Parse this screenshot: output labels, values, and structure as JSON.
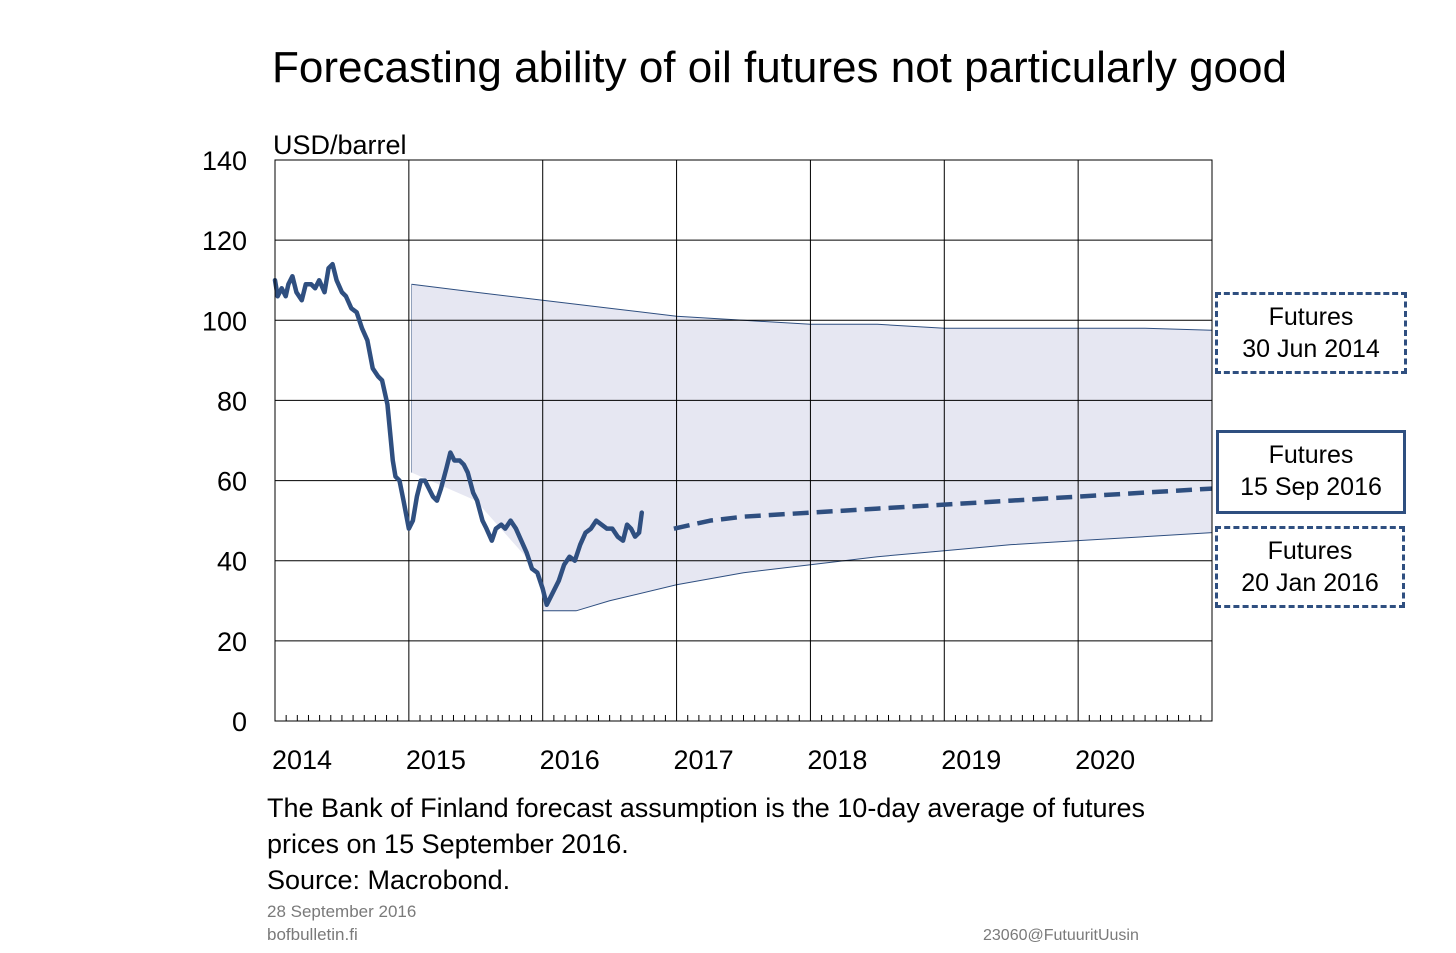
{
  "title": "Forecasting ability of oil futures not particularly good",
  "note": {
    "line1": "The Bank of Finland forecast assumption is the 10-day average of futures",
    "line2": "prices on 15 September 2016.",
    "source": "Source: Macrobond."
  },
  "footer": {
    "date": "28 September 2016",
    "site": "bofbulletin.fi",
    "code": "23060@FutuuritUusin"
  },
  "legend_boxes": [
    {
      "line1": "Futures",
      "line2": "30 Jun 2014"
    },
    {
      "line1": "Futures",
      "line2": "15 Sep 2016"
    },
    {
      "line1": "Futures",
      "line2": "20 Jan 2016"
    }
  ],
  "colors": {
    "price_line": "#2f4f80",
    "band_fill": "#e6e7f2",
    "band_edge": "#2f4f80",
    "grid": "#000000"
  },
  "chart_data": {
    "type": "line",
    "ylabel": "USD/barrel",
    "ylim": [
      0,
      140
    ],
    "yticks": [
      0,
      20,
      40,
      60,
      80,
      100,
      120,
      140
    ],
    "xlim": [
      2014.0,
      2021.0
    ],
    "xtick_labels": [
      "2014",
      "2015",
      "2016",
      "2017",
      "2018",
      "2019",
      "2020"
    ],
    "grid": true,
    "series": [
      {
        "style": "solid",
        "points": [
          [
            2014.0,
            110
          ],
          [
            2014.02,
            106
          ],
          [
            2014.05,
            108
          ],
          [
            2014.08,
            106
          ],
          [
            2014.1,
            109
          ],
          [
            2014.13,
            111
          ],
          [
            2014.16,
            107
          ],
          [
            2014.2,
            105
          ],
          [
            2014.23,
            109
          ],
          [
            2014.27,
            109
          ],
          [
            2014.3,
            108
          ],
          [
            2014.33,
            110
          ],
          [
            2014.37,
            107
          ],
          [
            2014.4,
            113
          ],
          [
            2014.43,
            114
          ],
          [
            2014.46,
            110
          ],
          [
            2014.5,
            107
          ],
          [
            2014.53,
            106
          ],
          [
            2014.57,
            103
          ],
          [
            2014.61,
            102
          ],
          [
            2014.65,
            98
          ],
          [
            2014.69,
            95
          ],
          [
            2014.73,
            88
          ],
          [
            2014.77,
            86
          ],
          [
            2014.8,
            85
          ],
          [
            2014.84,
            79
          ],
          [
            2014.86,
            72
          ],
          [
            2014.88,
            65
          ],
          [
            2014.9,
            61
          ],
          [
            2014.93,
            60
          ],
          [
            2014.96,
            55
          ],
          [
            2015.0,
            48
          ],
          [
            2015.03,
            50
          ],
          [
            2015.06,
            56
          ],
          [
            2015.09,
            60
          ],
          [
            2015.12,
            60
          ],
          [
            2015.15,
            58
          ],
          [
            2015.18,
            56
          ],
          [
            2015.21,
            55
          ],
          [
            2015.24,
            58
          ],
          [
            2015.28,
            63
          ],
          [
            2015.31,
            67
          ],
          [
            2015.34,
            65
          ],
          [
            2015.38,
            65
          ],
          [
            2015.41,
            64
          ],
          [
            2015.44,
            62
          ],
          [
            2015.48,
            57
          ],
          [
            2015.51,
            55
          ],
          [
            2015.55,
            50
          ],
          [
            2015.58,
            48
          ],
          [
            2015.62,
            45
          ],
          [
            2015.65,
            48
          ],
          [
            2015.69,
            49
          ],
          [
            2015.72,
            48
          ],
          [
            2015.76,
            50
          ],
          [
            2015.8,
            48
          ],
          [
            2015.84,
            45
          ],
          [
            2015.88,
            42
          ],
          [
            2015.92,
            38
          ],
          [
            2015.96,
            37
          ],
          [
            2016.0,
            33
          ],
          [
            2016.03,
            29
          ],
          [
            2016.06,
            31
          ],
          [
            2016.09,
            33
          ],
          [
            2016.12,
            35
          ],
          [
            2016.16,
            39
          ],
          [
            2016.2,
            41
          ],
          [
            2016.24,
            40
          ],
          [
            2016.28,
            44
          ],
          [
            2016.32,
            47
          ],
          [
            2016.36,
            48
          ],
          [
            2016.4,
            50
          ],
          [
            2016.44,
            49
          ],
          [
            2016.48,
            48
          ],
          [
            2016.52,
            48
          ],
          [
            2016.56,
            46
          ],
          [
            2016.6,
            45
          ],
          [
            2016.63,
            49
          ],
          [
            2016.66,
            48
          ],
          [
            2016.69,
            46
          ],
          [
            2016.72,
            47
          ],
          [
            2016.74,
            52
          ]
        ]
      },
      {
        "style": "dashed",
        "points": [
          [
            2016.98,
            48
          ],
          [
            2017.25,
            50
          ],
          [
            2017.5,
            51
          ],
          [
            2018.0,
            52
          ],
          [
            2018.5,
            53
          ],
          [
            2019.0,
            54
          ],
          [
            2019.5,
            55
          ],
          [
            2020.0,
            56
          ],
          [
            2020.5,
            57
          ],
          [
            2021.0,
            58
          ]
        ]
      }
    ],
    "band": {
      "upper": [
        [
          2015.02,
          109
        ],
        [
          2015.5,
          107
        ],
        [
          2016.0,
          105
        ],
        [
          2016.5,
          103
        ],
        [
          2017.0,
          101
        ],
        [
          2017.5,
          100
        ],
        [
          2018.0,
          99
        ],
        [
          2018.5,
          99
        ],
        [
          2019.0,
          98
        ],
        [
          2019.5,
          98
        ],
        [
          2020.0,
          98
        ],
        [
          2020.5,
          98
        ],
        [
          2021.0,
          97.5
        ]
      ],
      "lower": [
        [
          2016.0,
          27.5
        ],
        [
          2016.25,
          27.5
        ],
        [
          2016.5,
          30
        ],
        [
          2017.0,
          34
        ],
        [
          2017.5,
          37
        ],
        [
          2018.0,
          39
        ],
        [
          2018.5,
          41
        ],
        [
          2019.0,
          42.5
        ],
        [
          2019.5,
          44
        ],
        [
          2020.0,
          45
        ],
        [
          2020.5,
          46
        ],
        [
          2021.0,
          47
        ]
      ],
      "left_bottom": [
        [
          2015.02,
          62
        ],
        [
          2015.5,
          55
        ],
        [
          2015.98,
          37
        ],
        [
          2016.0,
          27.5
        ]
      ]
    }
  }
}
